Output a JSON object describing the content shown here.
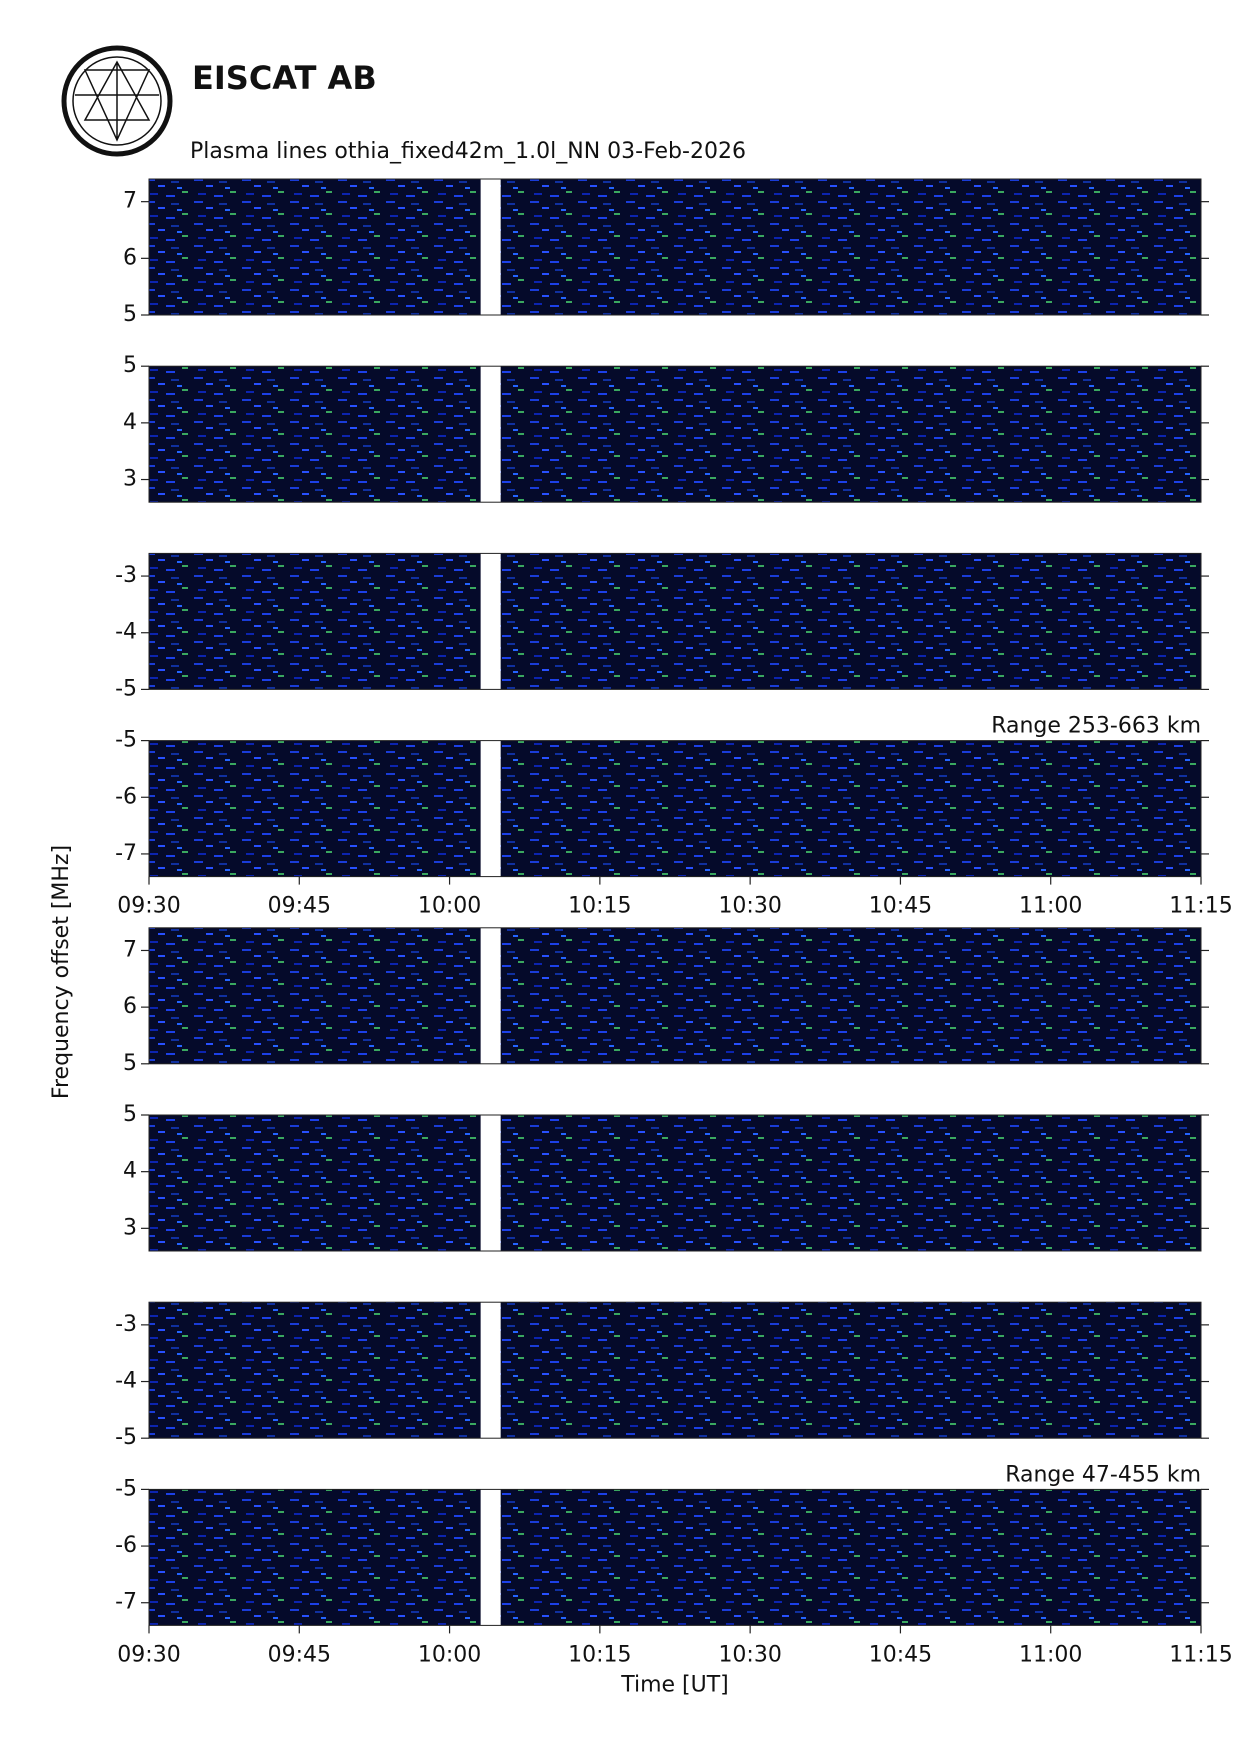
{
  "title": "EISCAT AB",
  "subtitle": "Plasma lines   othia_fixed42m_1.0l_NN  03-Feb-2026",
  "ylabel": "Frequency offset [MHz]",
  "chart_data": [
    {
      "type": "heatmap",
      "xlim": [
        570,
        675
      ],
      "ylim": [
        5,
        7.4
      ],
      "yticks": [
        5,
        6,
        7
      ],
      "data_gap": [
        603.1,
        605.1
      ]
    },
    {
      "type": "heatmap",
      "xlim": [
        570,
        675
      ],
      "ylim": [
        2.6,
        5
      ],
      "yticks": [
        3,
        4,
        5
      ],
      "data_gap": [
        603.1,
        605.1
      ]
    },
    {
      "type": "heatmap",
      "xlim": [
        570,
        675
      ],
      "ylim": [
        -5,
        -2.6
      ],
      "yticks": [
        -5,
        -4,
        -3
      ],
      "data_gap": [
        603.1,
        605.1
      ]
    },
    {
      "type": "heatmap",
      "xlim": [
        570,
        675
      ],
      "ylim": [
        -7.4,
        -5
      ],
      "yticks": [
        -7,
        -6,
        -5
      ],
      "data_gap": [
        603.1,
        605.1
      ],
      "annotation": "Range 253-663 km",
      "xticks": [
        {
          "value": 570,
          "label": "09:30"
        },
        {
          "value": 585,
          "label": "09:45"
        },
        {
          "value": 600,
          "label": "10:00"
        },
        {
          "value": 615,
          "label": "10:15"
        },
        {
          "value": 630,
          "label": "10:30"
        },
        {
          "value": 645,
          "label": "10:45"
        },
        {
          "value": 660,
          "label": "11:00"
        },
        {
          "value": 675,
          "label": "11:15"
        }
      ]
    },
    {
      "type": "heatmap",
      "xlim": [
        570,
        675
      ],
      "ylim": [
        5,
        7.4
      ],
      "yticks": [
        5,
        6,
        7
      ],
      "data_gap": [
        603.1,
        605.1
      ]
    },
    {
      "type": "heatmap",
      "xlim": [
        570,
        675
      ],
      "ylim": [
        2.6,
        5
      ],
      "yticks": [
        3,
        4,
        5
      ],
      "data_gap": [
        603.1,
        605.1
      ]
    },
    {
      "type": "heatmap",
      "xlim": [
        570,
        675
      ],
      "ylim": [
        -5,
        -2.6
      ],
      "yticks": [
        -5,
        -4,
        -3
      ],
      "data_gap": [
        603.1,
        605.1
      ]
    },
    {
      "type": "heatmap",
      "xlim": [
        570,
        675
      ],
      "ylim": [
        -7.4,
        -5
      ],
      "yticks": [
        -7,
        -6,
        -5
      ],
      "data_gap": [
        603.1,
        605.1
      ],
      "annotation": "Range 47-455 km",
      "xlabel": "Time [UT]",
      "xticks": [
        {
          "value": 570,
          "label": "09:30"
        },
        {
          "value": 585,
          "label": "09:45"
        },
        {
          "value": 600,
          "label": "10:00"
        },
        {
          "value": 615,
          "label": "10:15"
        },
        {
          "value": 630,
          "label": "10:30"
        },
        {
          "value": 645,
          "label": "10:45"
        },
        {
          "value": 660,
          "label": "11:00"
        },
        {
          "value": 675,
          "label": "11:15"
        }
      ]
    }
  ]
}
